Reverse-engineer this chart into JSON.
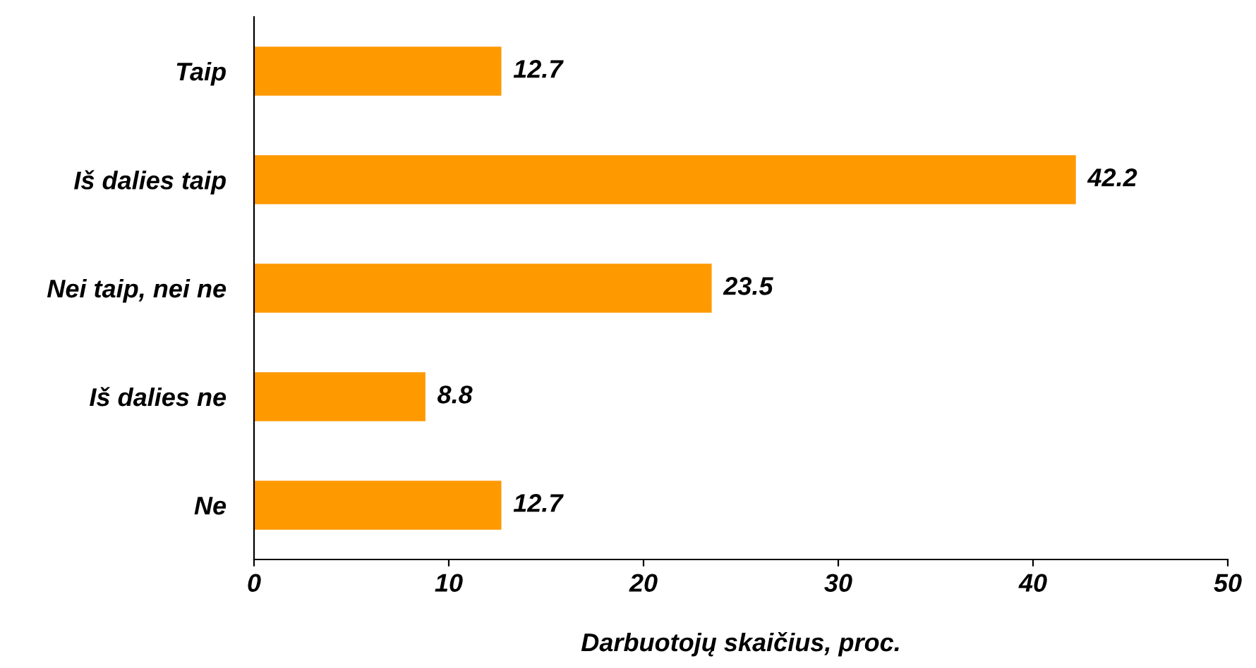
{
  "chart_data": {
    "type": "bar",
    "orientation": "horizontal",
    "xlabel": "Darbuotojų skaičius, proc.",
    "categories": [
      "Taip",
      "Iš dalies taip",
      "Nei taip, nei ne",
      "Iš dalies ne",
      "Ne"
    ],
    "values": [
      12.7,
      42.2,
      23.5,
      8.8,
      12.7
    ],
    "color": "#ff9900",
    "xlim": [
      0,
      50
    ],
    "xticks": [
      0,
      10,
      20,
      30,
      40,
      50
    ],
    "grid": false,
    "data_labels": true
  }
}
